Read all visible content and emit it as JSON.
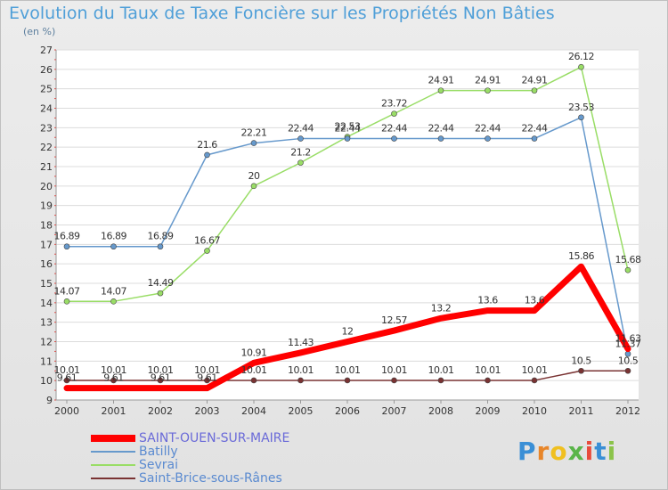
{
  "title": "Evolution du Taux de Taxe Foncière sur les Propriétés Non Bâties",
  "subtitle": "(en %)",
  "logo": {
    "text": "Proxiti",
    "letters": [
      {
        "ch": "P",
        "color": "#3a8fd6"
      },
      {
        "ch": "r",
        "color": "#e8862a"
      },
      {
        "ch": "o",
        "color": "#f0c020"
      },
      {
        "ch": "x",
        "color": "#5ab54a"
      },
      {
        "ch": "i",
        "color": "#e84c3d"
      },
      {
        "ch": "t",
        "color": "#3a8fd6"
      },
      {
        "ch": "i",
        "color": "#8bc34a"
      }
    ]
  },
  "chart_data": {
    "type": "line",
    "title": "Evolution du Taux de Taxe Foncière sur les Propriétés Non Bâties",
    "ylabel": "(en %)",
    "x": [
      "2000",
      "2001",
      "2002",
      "2003",
      "2004",
      "2005",
      "2006",
      "2007",
      "2008",
      "2009",
      "2010",
      "2011",
      "2012"
    ],
    "ylim": [
      9,
      27
    ],
    "yticks": [
      "9",
      "10",
      "11",
      "12",
      "13",
      "14",
      "15",
      "16",
      "17",
      "18",
      "19",
      "20",
      "21",
      "22",
      "23",
      "24",
      "25",
      "26",
      "27"
    ],
    "grid": "horizontal",
    "legend_position": "bottom-left",
    "series": [
      {
        "name": "SAINT-OUEN-SUR-MAIRE",
        "color": "#ff0000",
        "values": [
          9.61,
          9.61,
          9.61,
          9.61,
          10.91,
          11.43,
          12,
          12.57,
          13.2,
          13.6,
          13.6,
          15.86,
          11.63
        ],
        "labels": [
          "9.61",
          "9.61",
          "9.61",
          "9.61",
          "10.91",
          "11.43",
          "12",
          "12.57",
          "13.2",
          "13.6",
          "13.6",
          "15.86",
          "11.63"
        ]
      },
      {
        "name": "Batilly",
        "color": "#6699cc",
        "values": [
          16.89,
          16.89,
          16.89,
          21.6,
          22.21,
          22.44,
          22.44,
          22.44,
          22.44,
          22.44,
          22.44,
          23.53,
          11.37
        ],
        "labels": [
          "16.89",
          "16.89",
          "16.89",
          "21.6",
          "22.21",
          "22.44",
          "22.44",
          "22.44",
          "22.44",
          "22.44",
          "22.44",
          "23.53",
          "11.37"
        ]
      },
      {
        "name": "Sevrai",
        "color": "#99dd66",
        "values": [
          14.07,
          14.07,
          14.49,
          16.67,
          20,
          21.2,
          22.53,
          23.72,
          24.91,
          24.91,
          24.91,
          26.12,
          15.68
        ],
        "labels": [
          "14.07",
          "14.07",
          "14.49",
          "16.67",
          "20",
          "21.2",
          "22.53",
          "23.72",
          "24.91",
          "24.91",
          "24.91",
          "26.12",
          "15.68"
        ]
      },
      {
        "name": "Saint-Brice-sous-Rânes",
        "color": "#7a3333",
        "values": [
          10.01,
          10.01,
          10.01,
          10.01,
          10.01,
          10.01,
          10.01,
          10.01,
          10.01,
          10.01,
          10.01,
          10.5,
          10.5
        ],
        "labels": [
          "10.01",
          "10.01",
          "10.01",
          "10.01",
          "10.01",
          "10.01",
          "10.01",
          "10.01",
          "10.01",
          "10.01",
          "10.01",
          "10.5",
          "10.5"
        ]
      }
    ]
  }
}
